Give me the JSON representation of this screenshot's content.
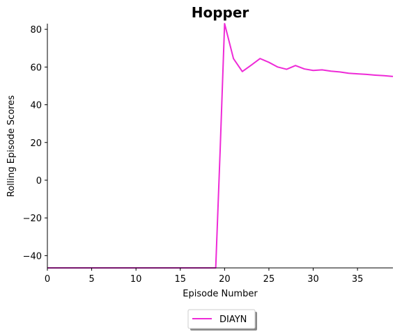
{
  "chart_data": {
    "type": "line",
    "title": "Hopper",
    "xlabel": "Episode Number",
    "ylabel": "Rolling Episode Scores",
    "xlim": [
      0,
      39
    ],
    "ylim": [
      -46.5,
      83
    ],
    "xticks": [
      0,
      5,
      10,
      15,
      20,
      25,
      30,
      35
    ],
    "yticks": [
      -40,
      -20,
      0,
      20,
      40,
      60,
      80
    ],
    "xtick_labels": [
      "0",
      "5",
      "10",
      "15",
      "20",
      "25",
      "30",
      "35"
    ],
    "ytick_labels": [
      "−40",
      "−20",
      "0",
      "20",
      "40",
      "60",
      "80"
    ],
    "grid": false,
    "legend_position": "bottom-center",
    "series": [
      {
        "name": "DIAYN",
        "color": "#ee2ad7",
        "x": [
          0,
          1,
          2,
          3,
          4,
          5,
          6,
          7,
          8,
          9,
          10,
          11,
          12,
          13,
          14,
          15,
          16,
          17,
          18,
          19,
          19.5,
          20,
          21,
          22,
          23,
          24,
          25,
          26,
          27,
          28,
          29,
          30,
          31,
          32,
          33,
          34,
          35,
          36,
          37,
          38,
          39
        ],
        "y": [
          -46.5,
          -46.5,
          -46.5,
          -46.5,
          -46.5,
          -46.5,
          -46.5,
          -46.5,
          -46.5,
          -46.5,
          -46.5,
          -46.5,
          -46.5,
          -46.5,
          -46.5,
          -46.5,
          -46.5,
          -46.5,
          -46.5,
          -46.5,
          16,
          83,
          64.5,
          57.6,
          61,
          64.5,
          62.5,
          60,
          58.8,
          60.8,
          59,
          58.2,
          58.5,
          57.8,
          57.4,
          56.7,
          56.4,
          56.1,
          55.7,
          55.4,
          55
        ]
      }
    ]
  }
}
